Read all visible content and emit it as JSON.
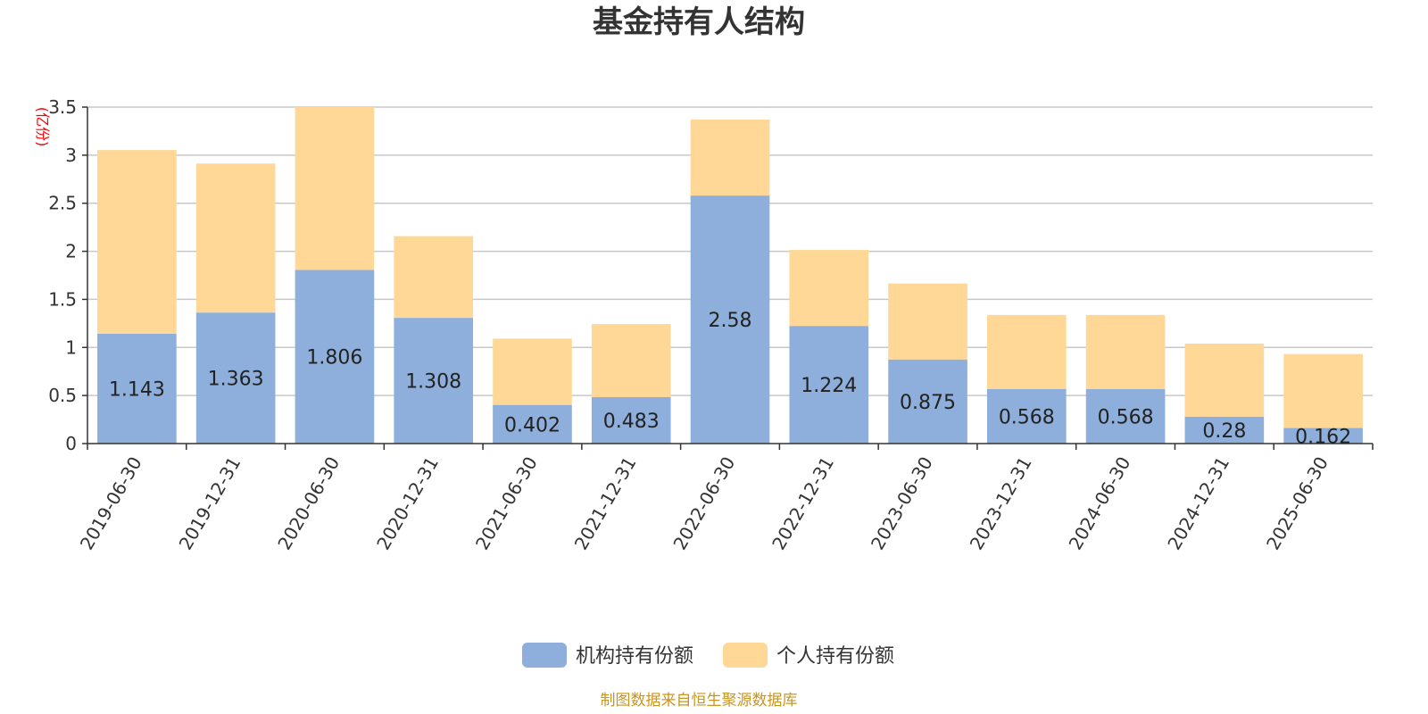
{
  "title": "基金持有人结构",
  "source": "制图数据来自恒生聚源数据库",
  "colors": {
    "institution": "#8eaedb",
    "individual": "#ffd897",
    "unit_text": "#ff0000",
    "source_text": "#c8961e"
  },
  "chart_data": {
    "type": "bar",
    "stacked": true,
    "title": "基金持有人结构",
    "unit": "(亿份)",
    "xlabel": "",
    "ylabel": "",
    "ylim": [
      0,
      3.5
    ],
    "yticks": [
      "0",
      "0.5",
      "1",
      "1.5",
      "2",
      "2.5",
      "3",
      "3.5"
    ],
    "grid": true,
    "legend_position": "bottom",
    "categories": [
      "2019-06-30",
      "2019-12-31",
      "2020-06-30",
      "2020-12-31",
      "2021-06-30",
      "2021-12-31",
      "2022-06-30",
      "2022-12-31",
      "2023-06-30",
      "2023-12-31",
      "2024-06-30",
      "2024-12-31",
      "2025-06-30"
    ],
    "series": [
      {
        "name": "机构持有份额",
        "values": [
          1.143,
          1.363,
          1.806,
          1.308,
          0.402,
          0.483,
          2.58,
          1.224,
          0.875,
          0.568,
          0.568,
          0.28,
          0.162
        ],
        "labels": [
          "1.143",
          "1.363",
          "1.806",
          "1.308",
          "0.402",
          "0.483",
          "2.58",
          "1.224",
          "0.875",
          "0.568",
          "0.568",
          "0.28",
          "0.162"
        ]
      },
      {
        "name": "个人持有份额",
        "values": [
          1.91,
          1.55,
          1.75,
          0.85,
          0.69,
          0.76,
          0.79,
          0.79,
          0.79,
          0.77,
          0.77,
          0.76,
          0.77
        ]
      }
    ]
  }
}
